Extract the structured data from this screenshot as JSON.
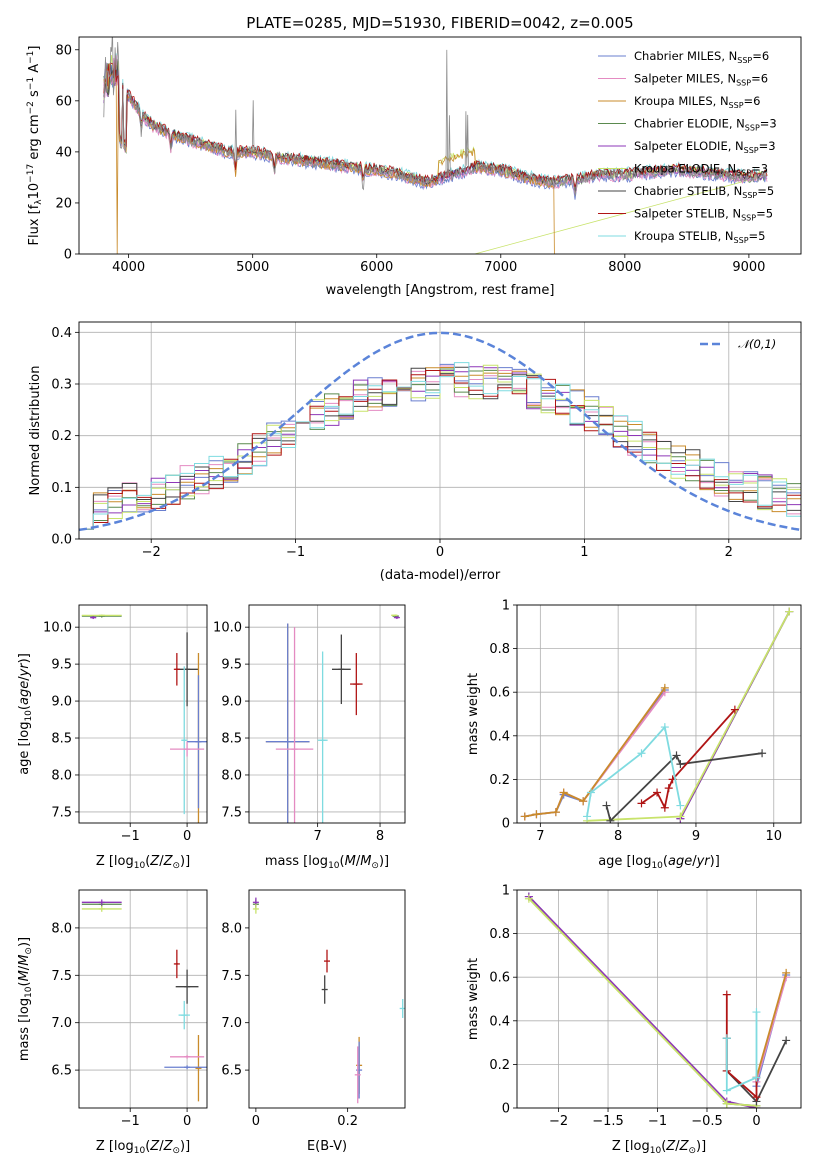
{
  "figure": {
    "title": "PLATE=0285, MJD=51930, FIBERID=0042, z=0.005"
  },
  "models": [
    {
      "name": "Chabrier MILES, N_SSP=6",
      "base": "Chabrier MILES, N",
      "sub": "SSP",
      "tail": "=6",
      "color": "#6a7fcf"
    },
    {
      "name": "Salpeter MILES, N_SSP=6",
      "base": "Salpeter MILES, N",
      "sub": "SSP",
      "tail": "=6",
      "color": "#e48bc2"
    },
    {
      "name": "Kroupa MILES, N_SSP=6",
      "base": "Kroupa MILES, N",
      "sub": "SSP",
      "tail": "=6",
      "color": "#c98b2b"
    },
    {
      "name": "Chabrier ELODIE, N_SSP=3",
      "base": "Chabrier ELODIE, N",
      "sub": "SSP",
      "tail": "=3",
      "color": "#5a8a4e"
    },
    {
      "name": "Salpeter ELODIE, N_SSP=3",
      "base": "Salpeter ELODIE, N",
      "sub": "SSP",
      "tail": "=3",
      "color": "#8e37b8"
    },
    {
      "name": "Kroupa ELODIE, N_SSP=3",
      "base": "Kroupa ELODIE, N",
      "sub": "SSP",
      "tail": "=3",
      "color": "#c8e36b"
    },
    {
      "name": "Chabrier STELIB, N_SSP=5",
      "base": "Chabrier STELIB, N",
      "sub": "SSP",
      "tail": "=5",
      "color": "#444444"
    },
    {
      "name": "Salpeter STELIB, N_SSP=5",
      "base": "Salpeter STELIB, N",
      "sub": "SSP",
      "tail": "=5",
      "color": "#b01515"
    },
    {
      "name": "Kroupa STELIB, N_SSP=5",
      "base": "Kroupa STELIB, N",
      "sub": "SSP",
      "tail": "=5",
      "color": "#7fdbe0"
    }
  ],
  "chart_data": [
    {
      "id": "spectrum",
      "type": "line",
      "xlabel": "wavelength [Angstrom, rest frame]",
      "ylabel": "Flux [f_λ 10^-17 erg cm^-2 s^-1 A^-1]",
      "xlim": [
        3600,
        9420
      ],
      "ylim": [
        0,
        85
      ],
      "xticks": [
        4000,
        5000,
        6000,
        7000,
        8000,
        9000
      ],
      "yticks": [
        0,
        20,
        40,
        60,
        80
      ],
      "grid": false,
      "legend_placement": "upper-right",
      "continuum": {
        "x": [
          3800,
          3900,
          4000,
          4100,
          4200,
          4400,
          4600,
          4800,
          5000,
          5200,
          5500,
          5800,
          6000,
          6200,
          6400,
          6600,
          6800,
          7000,
          7200,
          7400,
          7600,
          7800,
          8000,
          8200,
          8400,
          8600,
          8800,
          9000,
          9150
        ],
        "y": [
          64,
          70,
          62,
          55,
          50,
          46,
          43,
          40,
          40,
          38,
          36,
          34,
          33,
          31,
          28,
          31,
          34,
          33,
          30,
          28,
          29,
          31,
          31,
          32,
          33,
          32,
          31,
          30,
          31
        ]
      },
      "absorption_features": [
        3934,
        3968,
        4102,
        4340,
        4861,
        5175,
        5890,
        7600
      ],
      "emission_lines": [
        3727,
        4861,
        5007,
        6563,
        6584,
        6717,
        6731
      ],
      "cutoffs": [
        {
          "model_index": 2,
          "drop_at": 3910
        },
        {
          "model_index": 2,
          "bump_range": [
            6500,
            6790
          ],
          "drop_at": 6790
        },
        {
          "model_index": 5,
          "bump_range": [
            6500,
            6790
          ],
          "drop_at": 6790
        },
        {
          "model_index": 2,
          "drop_at": 7430
        }
      ]
    },
    {
      "id": "residuals",
      "type": "line",
      "xlabel": "(data-model)/error",
      "ylabel": "Normed distribution",
      "xlim": [
        -2.5,
        2.5
      ],
      "ylim": [
        0,
        0.42
      ],
      "xticks": [
        -2,
        -1,
        0,
        1,
        2
      ],
      "yticks": [
        0.0,
        0.1,
        0.2,
        0.3,
        0.4
      ],
      "grid": true,
      "legend_placement": "upper-right",
      "reference_curve": {
        "name": "𝒩(0,1)",
        "color": "#5b84d9",
        "style": "dashed"
      },
      "histogram_bin_width": 0.1,
      "histogram_envelope": {
        "x": [
          -2.5,
          -2.0,
          -1.5,
          -1.0,
          -0.5,
          0.0,
          0.5,
          1.0,
          1.5,
          2.0,
          2.5
        ],
        "y": [
          0.05,
          0.085,
          0.13,
          0.22,
          0.28,
          0.31,
          0.3,
          0.25,
          0.17,
          0.11,
          0.07
        ]
      }
    },
    {
      "id": "age_vs_Z",
      "type": "scatter",
      "xlabel": "Z [log10(Z/Z⊙)]",
      "ylabel": "age  [log10(age/yr)]",
      "xlim": [
        -1.9,
        0.35
      ],
      "ylim": [
        7.35,
        10.3
      ],
      "xticks": [
        -1,
        0
      ],
      "yticks": [
        7.5,
        8.0,
        8.5,
        9.0,
        9.5,
        10.0
      ],
      "grid": true,
      "points": [
        {
          "m": 6,
          "x": 0.0,
          "y": 9.43,
          "xerr": 0.2,
          "yerr": 0.5
        },
        {
          "m": 7,
          "x": -0.18,
          "y": 9.43,
          "xerr": 0.02,
          "yerr": 0.22
        },
        {
          "m": 8,
          "x": -0.05,
          "y": 8.47,
          "xerr": 0.03,
          "yerr": 1.0
        },
        {
          "m": 2,
          "x": 0.2,
          "y": 8.45,
          "xerr": 0.05,
          "yerr": 1.2
        },
        {
          "m": 0,
          "x": 0.2,
          "y": 8.45,
          "xerr": 0.2,
          "yerr": 0.9
        },
        {
          "m": 1,
          "x": 0.0,
          "y": 8.35,
          "xerr": 0.3,
          "yerr": 0.1
        },
        {
          "m": 3,
          "x": -1.5,
          "y": 10.15,
          "xerr": 0.35,
          "yerr": 0.02
        },
        {
          "m": 4,
          "x": -1.65,
          "y": 10.13,
          "xerr": 0.05,
          "yerr": 0.02
        },
        {
          "m": 5,
          "x": -1.5,
          "y": 10.16,
          "xerr": 0.35,
          "yerr": 0.01
        }
      ]
    },
    {
      "id": "age_vs_mass",
      "type": "scatter",
      "xlabel": "mass [log10(M/M⊙)]",
      "ylabel": "",
      "xlim": [
        5.9,
        8.4
      ],
      "ylim": [
        7.35,
        10.3
      ],
      "xticks": [
        7,
        8
      ],
      "yticks": [
        7.5,
        8.0,
        8.5,
        9.0,
        9.5,
        10.0
      ],
      "grid": true,
      "points": [
        {
          "m": 6,
          "x": 7.38,
          "y": 9.43,
          "xerr": 0.15,
          "yerr": 0.47
        },
        {
          "m": 7,
          "x": 7.62,
          "y": 9.23,
          "xerr": 0.1,
          "yerr": 0.42
        },
        {
          "m": 8,
          "x": 7.08,
          "y": 8.47,
          "xerr": 0.08,
          "yerr": 1.2
        },
        {
          "m": 2,
          "x": 6.52,
          "y": 8.45,
          "xerr": 0.35,
          "yerr": 1.6
        },
        {
          "m": 0,
          "x": 6.52,
          "y": 8.45,
          "xerr": 0.35,
          "yerr": 1.6
        },
        {
          "m": 1,
          "x": 6.63,
          "y": 8.35,
          "xerr": 0.3,
          "yerr": 1.65
        },
        {
          "m": 3,
          "x": 8.25,
          "y": 10.15,
          "xerr": 0.05,
          "yerr": 0.02
        },
        {
          "m": 4,
          "x": 8.27,
          "y": 10.13,
          "xerr": 0.03,
          "yerr": 0.02
        },
        {
          "m": 5,
          "x": 8.23,
          "y": 10.16,
          "xerr": 0.05,
          "yerr": 0.01
        }
      ]
    },
    {
      "id": "massweight_vs_age",
      "type": "line",
      "xlabel": "age  [log10(age/yr)]",
      "ylabel": "mass weight",
      "xlim": [
        6.7,
        10.35
      ],
      "ylim": [
        0,
        1.0
      ],
      "xticks": [
        7,
        8,
        9,
        10
      ],
      "yticks": [
        0.0,
        0.2,
        0.4,
        0.6,
        0.8,
        1.0
      ],
      "grid": true,
      "series": [
        {
          "m": 0,
          "x": [
            6.8,
            6.95,
            7.2,
            7.3,
            7.55,
            8.6
          ],
          "y": [
            0.03,
            0.04,
            0.05,
            0.13,
            0.1,
            0.61
          ]
        },
        {
          "m": 1,
          "x": [
            6.8,
            6.95,
            7.2,
            7.3,
            7.55,
            8.6
          ],
          "y": [
            0.03,
            0.04,
            0.05,
            0.14,
            0.1,
            0.6
          ]
        },
        {
          "m": 2,
          "x": [
            6.8,
            6.95,
            7.2,
            7.3,
            7.55,
            8.6
          ],
          "y": [
            0.03,
            0.04,
            0.05,
            0.14,
            0.1,
            0.62
          ]
        },
        {
          "m": 3,
          "x": [
            8.8,
            10.2
          ],
          "y": [
            0.02,
            0.97
          ]
        },
        {
          "m": 4,
          "x": [
            8.8,
            10.2
          ],
          "y": [
            0.02,
            0.97
          ]
        },
        {
          "m": 5,
          "x": [
            7.6,
            8.8,
            10.2
          ],
          "y": [
            0.01,
            0.03,
            0.97
          ]
        },
        {
          "m": 6,
          "x": [
            7.85,
            7.9,
            8.75,
            8.8,
            9.85
          ],
          "y": [
            0.08,
            0.01,
            0.31,
            0.27,
            0.32
          ]
        },
        {
          "m": 7,
          "x": [
            8.3,
            8.5,
            8.6,
            8.65,
            8.7,
            9.5
          ],
          "y": [
            0.09,
            0.14,
            0.07,
            0.16,
            0.2,
            0.52
          ]
        },
        {
          "m": 8,
          "x": [
            7.6,
            7.65,
            8.3,
            8.6,
            8.8
          ],
          "y": [
            0.03,
            0.14,
            0.32,
            0.44,
            0.08
          ]
        }
      ]
    },
    {
      "id": "mass_vs_Z",
      "type": "scatter",
      "xlabel": "Z [log10(Z/Z⊙)]",
      "ylabel": "mass [log10(M/M⊙)]",
      "xlim": [
        -1.9,
        0.35
      ],
      "ylim": [
        6.1,
        8.4
      ],
      "xticks": [
        -1,
        0
      ],
      "yticks": [
        6.5,
        7.0,
        7.5,
        8.0
      ],
      "grid": true,
      "points": [
        {
          "m": 6,
          "x": 0.0,
          "y": 7.38,
          "xerr": 0.2,
          "yerr": 0.18
        },
        {
          "m": 7,
          "x": -0.18,
          "y": 7.62,
          "xerr": 0.02,
          "yerr": 0.15
        },
        {
          "m": 8,
          "x": -0.05,
          "y": 7.08,
          "xerr": 0.1,
          "yerr": 0.15
        },
        {
          "m": 2,
          "x": 0.2,
          "y": 6.52,
          "xerr": 0.05,
          "yerr": 0.35
        },
        {
          "m": 0,
          "x": 0.0,
          "y": 6.53,
          "xerr": 0.4,
          "yerr": 0.02
        },
        {
          "m": 1,
          "x": 0.0,
          "y": 6.64,
          "xerr": 0.3,
          "yerr": 0.02
        },
        {
          "m": 3,
          "x": -1.5,
          "y": 8.25,
          "xerr": 0.35,
          "yerr": 0.03
        },
        {
          "m": 4,
          "x": -1.5,
          "y": 8.27,
          "xerr": 0.35,
          "yerr": 0.03
        },
        {
          "m": 5,
          "x": -1.5,
          "y": 8.2,
          "xerr": 0.35,
          "yerr": 0.03
        }
      ]
    },
    {
      "id": "mass_vs_EBV",
      "type": "scatter",
      "xlabel": "E(B-V)",
      "ylabel": "",
      "xlim": [
        -0.015,
        0.325
      ],
      "ylim": [
        6.1,
        8.4
      ],
      "xticks": [
        0.0,
        0.2
      ],
      "yticks": [
        6.5,
        7.0,
        7.5,
        8.0
      ],
      "grid": false,
      "points": [
        {
          "m": 6,
          "x": 0.15,
          "y": 7.35,
          "xerr": 0.0,
          "yerr": 0.15
        },
        {
          "m": 7,
          "x": 0.155,
          "y": 7.65,
          "xerr": 0.0,
          "yerr": 0.12
        },
        {
          "m": 8,
          "x": 0.32,
          "y": 7.15,
          "xerr": 0.0,
          "yerr": 0.1
        },
        {
          "m": 2,
          "x": 0.225,
          "y": 6.55,
          "xerr": 0.0,
          "yerr": 0.3
        },
        {
          "m": 0,
          "x": 0.225,
          "y": 6.5,
          "xerr": 0.0,
          "yerr": 0.3
        },
        {
          "m": 1,
          "x": 0.222,
          "y": 6.45,
          "xerr": 0.0,
          "yerr": 0.3
        },
        {
          "m": 3,
          "x": 0.0,
          "y": 8.25,
          "xerr": 0.0,
          "yerr": 0.05
        },
        {
          "m": 4,
          "x": 0.0,
          "y": 8.27,
          "xerr": 0.0,
          "yerr": 0.05
        },
        {
          "m": 5,
          "x": 0.0,
          "y": 8.2,
          "xerr": 0.0,
          "yerr": 0.05
        }
      ]
    },
    {
      "id": "massweight_vs_Z",
      "type": "line",
      "xlabel": "Z [log10(Z/Z⊙)]",
      "ylabel": "mass weight",
      "xlim": [
        -2.42,
        0.45
      ],
      "ylim": [
        0,
        1.0
      ],
      "xticks": [
        -2.0,
        -1.5,
        -1.0,
        -0.5,
        0.0
      ],
      "yticks": [
        0.0,
        0.2,
        0.4,
        0.6,
        0.8,
        1.0
      ],
      "grid": true,
      "series": [
        {
          "m": 0,
          "x": [
            0.0,
            0.3
          ],
          "y": [
            0.1,
            0.61
          ]
        },
        {
          "m": 1,
          "x": [
            0.0,
            0.3
          ],
          "y": [
            0.12,
            0.6
          ]
        },
        {
          "m": 2,
          "x": [
            0.0,
            0.3
          ],
          "y": [
            0.14,
            0.62
          ]
        },
        {
          "m": 3,
          "x": [
            -2.3,
            -0.3,
            0.0
          ],
          "y": [
            0.97,
            0.02,
            0.01
          ]
        },
        {
          "m": 4,
          "x": [
            -2.3,
            -0.3,
            0.0
          ],
          "y": [
            0.97,
            0.03,
            0.0
          ]
        },
        {
          "m": 5,
          "x": [
            -2.3,
            -0.3,
            0.0
          ],
          "y": [
            0.96,
            0.02,
            0.01
          ]
        },
        {
          "m": 6,
          "x": [
            -0.3,
            -0.3,
            0.0,
            0.3
          ],
          "y": [
            0.32,
            0.17,
            0.03,
            0.31
          ]
        },
        {
          "m": 7,
          "x": [
            -0.3,
            -0.3,
            0.0,
            0.0
          ],
          "y": [
            0.52,
            0.17,
            0.05,
            0.14
          ]
        },
        {
          "m": 8,
          "x": [
            -0.3,
            -0.3,
            0.0,
            0.0
          ],
          "y": [
            0.32,
            0.08,
            0.14,
            0.44
          ]
        }
      ]
    }
  ]
}
